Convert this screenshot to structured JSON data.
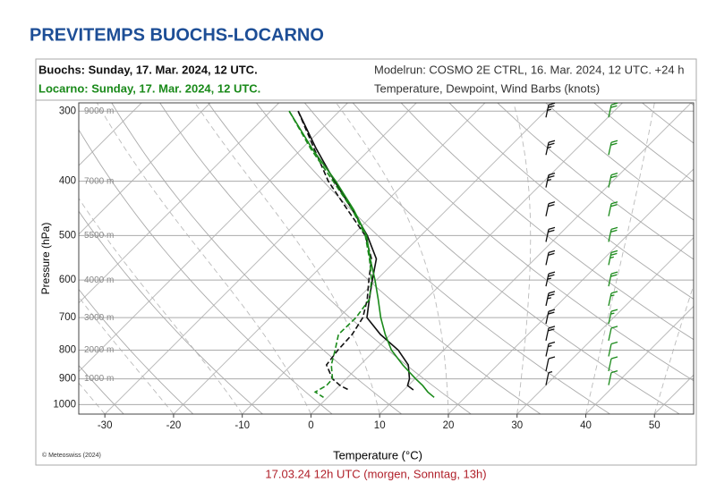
{
  "chart_data": {
    "type": "skewt",
    "title": "PREVITEMPS BUOCHS-LOCARNO",
    "model_info": "Modelrun: COSMO 2E CTRL, 16. Mar. 2024, 12 UTC. +24 h",
    "content_info": "Temperature, Dewpoint, Wind Barbs (knots)",
    "x_label": "Temperature (°C)",
    "y_label": "Pressure (hPa)",
    "credit": "© Meteoswiss (2024)",
    "footer": "17.03.24 12h UTC (morgen, Sonntag, 13h)",
    "xlim": [
      -33.8,
      55.7
    ],
    "xticks": [
      -30,
      -20,
      -10,
      0,
      10,
      20,
      30,
      40,
      50
    ],
    "ylim": [
      1040,
      290
    ],
    "y_scale": "log",
    "yticks": [
      300,
      400,
      500,
      600,
      700,
      800,
      900,
      1000
    ],
    "height_labels": [
      "9000 m",
      "7000 m",
      "5500 m",
      "4000 m",
      "3000 m",
      "2000 m",
      "1000 m",
      null
    ],
    "grid": true,
    "stations": [
      {
        "label": "Buochs: Sunday, 17. Mar. 2024, 12 UTC.",
        "color": "#111111",
        "wind_column": 1,
        "pressure": [
          300,
          350,
          400,
          450,
          500,
          550,
          600,
          650,
          700,
          750,
          800,
          850,
          900,
          925,
          942
        ],
        "temperature": [
          -46.0,
          -37.9,
          -30.5,
          -23.7,
          -17.8,
          -13.1,
          -10.6,
          -8.2,
          -5.9,
          -1.5,
          3.4,
          7.0,
          9.2,
          9.9,
          11.4
        ],
        "dewpoint": [
          -46.0,
          -38.2,
          -31.4,
          -24.4,
          -18.1,
          -13.8,
          -11.1,
          -8.5,
          -6.5,
          -5.6,
          -5.4,
          -4.9,
          -2.0,
          0.1,
          2.0
        ],
        "wind_pressure": [
          300,
          350,
          400,
          450,
          500,
          550,
          600,
          650,
          700,
          750,
          800,
          850,
          900
        ],
        "wind_speed": [
          25,
          25,
          25,
          20,
          20,
          20,
          25,
          25,
          20,
          20,
          15,
          10,
          5
        ]
      },
      {
        "label": "Locarno: Sunday, 17. Mar. 2024, 12 UTC.",
        "color": "#1a8a1a",
        "wind_column": 2,
        "pressure": [
          300,
          350,
          400,
          450,
          500,
          550,
          600,
          650,
          700,
          750,
          800,
          850,
          900,
          925,
          950,
          971
        ],
        "temperature": [
          -47.3,
          -38.5,
          -30.3,
          -23.5,
          -17.9,
          -14.0,
          -10.2,
          -6.9,
          -3.9,
          -0.8,
          2.4,
          6.2,
          10.1,
          12.1,
          13.8,
          15.5
        ],
        "dewpoint": [
          -47.3,
          -38.7,
          -30.7,
          -23.7,
          -18.1,
          -14.1,
          -10.7,
          -8.2,
          -7.5,
          -7.6,
          -5.8,
          -4.2,
          -2.0,
          -1.9,
          -2.6,
          -0.6
        ],
        "wind_pressure": [
          300,
          350,
          400,
          450,
          500,
          550,
          600,
          650,
          700,
          750,
          800,
          850,
          900
        ],
        "wind_speed": [
          20,
          20,
          20,
          20,
          20,
          25,
          20,
          15,
          15,
          10,
          10,
          10,
          10
        ]
      }
    ]
  }
}
